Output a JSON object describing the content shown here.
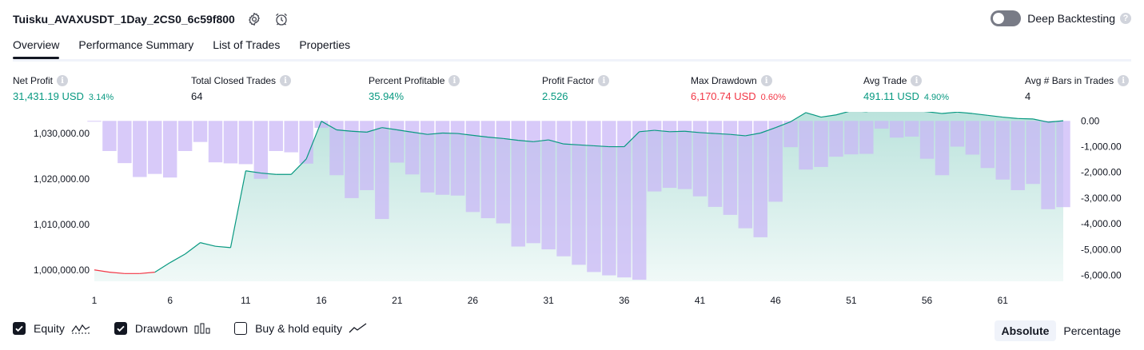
{
  "header": {
    "title": "Tuisku_AVAXUSDT_1Day_2CS0_6c59f800",
    "deep_backtesting_label": "Deep Backtesting"
  },
  "tabs": [
    {
      "label": "Overview",
      "active": true
    },
    {
      "label": "Performance Summary"
    },
    {
      "label": "List of Trades"
    },
    {
      "label": "Properties"
    }
  ],
  "metrics": [
    {
      "label": "Net Profit",
      "value": "31,431.19 USD",
      "pct": "3.14%",
      "color": "#089981"
    },
    {
      "label": "Total Closed Trades",
      "value": "64",
      "pct": "",
      "color": "#131722"
    },
    {
      "label": "Percent Profitable",
      "value": "35.94%",
      "pct": "",
      "color": "#089981"
    },
    {
      "label": "Profit Factor",
      "value": "2.526",
      "pct": "",
      "color": "#089981"
    },
    {
      "label": "Max Drawdown",
      "value": "6,170.74 USD",
      "pct": "0.60%",
      "color": "#f23645"
    },
    {
      "label": "Avg Trade",
      "value": "491.11 USD",
      "pct": "4.90%",
      "color": "#089981"
    },
    {
      "label": "Avg # Bars in Trades",
      "value": "4",
      "pct": "",
      "color": "#131722"
    }
  ],
  "legend": {
    "equity": {
      "label": "Equity",
      "checked": true
    },
    "drawdown": {
      "label": "Drawdown",
      "checked": true
    },
    "buy_hold": {
      "label": "Buy & hold equity",
      "checked": false
    }
  },
  "mode": {
    "absolute": "Absolute",
    "percentage": "Percentage",
    "selected": "Absolute"
  },
  "chart_data": {
    "type": "area",
    "x_ticks": [
      "1",
      "6",
      "11",
      "16",
      "21",
      "26",
      "31",
      "36",
      "41",
      "46",
      "51",
      "56",
      "61"
    ],
    "left_axis": {
      "ticks": [
        "1,000,000.00",
        "1,010,000.00",
        "1,020,000.00",
        "1,030,000.00"
      ],
      "tick_values": [
        1000000,
        1010000,
        1020000,
        1030000
      ],
      "range": [
        997500,
        1033000
      ]
    },
    "right_axis": {
      "ticks": [
        "0.00",
        "-1,000.00",
        "-2,000.00",
        "-3,000.00",
        "-4,000.00",
        "-5,000.00",
        "-6,000.00"
      ],
      "tick_values": [
        0,
        -1000,
        -2000,
        -3000,
        -4000,
        -5000,
        -6000
      ],
      "range": [
        -6230,
        40
      ]
    },
    "series": [
      {
        "name": "Equity",
        "type": "area",
        "color_up": "#089981",
        "color_down": "#f23645",
        "x": [
          1,
          2,
          3,
          4,
          5,
          6,
          7,
          8,
          9,
          10,
          11,
          12,
          13,
          14,
          15,
          16,
          17,
          18,
          19,
          20,
          21,
          22,
          23,
          24,
          25,
          26,
          27,
          28,
          29,
          30,
          31,
          32,
          33,
          34,
          35,
          36,
          37,
          38,
          39,
          40,
          41,
          42,
          43,
          44,
          45,
          46,
          47,
          48,
          49,
          50,
          51,
          52,
          53,
          54,
          55,
          56,
          57,
          58,
          59,
          60,
          61,
          62,
          63,
          64,
          65
        ],
        "values": [
          1000000,
          999500,
          999200,
          999200,
          999500,
          1001600,
          1003500,
          1006000,
          1005200,
          1004900,
          1021800,
          1021300,
          1021000,
          1021000,
          1024400,
          1032700,
          1030800,
          1030500,
          1030300,
          1031300,
          1030800,
          1030300,
          1029800,
          1030100,
          1030000,
          1029600,
          1029200,
          1028900,
          1028500,
          1028200,
          1028600,
          1027700,
          1027500,
          1027300,
          1027100,
          1027100,
          1030400,
          1030700,
          1030400,
          1030500,
          1030200,
          1030000,
          1029800,
          1029500,
          1030100,
          1031300,
          1032600,
          1034600,
          1033600,
          1034100,
          1035000,
          1034800,
          1035400,
          1035200,
          1035100,
          1034800,
          1034400,
          1034700,
          1034400,
          1034000,
          1033600,
          1033300,
          1033200,
          1032500,
          1032800
        ]
      },
      {
        "name": "Drawdown",
        "type": "bar",
        "color": "#d1c4f9",
        "overlap_color": "#a8b2e0",
        "x": [
          1,
          2,
          3,
          4,
          5,
          6,
          7,
          8,
          9,
          10,
          11,
          12,
          13,
          14,
          15,
          16,
          17,
          18,
          19,
          20,
          21,
          22,
          23,
          24,
          25,
          26,
          27,
          28,
          29,
          30,
          31,
          32,
          33,
          34,
          35,
          36,
          37,
          38,
          39,
          40,
          41,
          42,
          43,
          44,
          45,
          46,
          47,
          48,
          49,
          50,
          51,
          52,
          53,
          54,
          55,
          56,
          57,
          58,
          59,
          60,
          61,
          62,
          63,
          64,
          65
        ],
        "values": [
          -30,
          -1170,
          -1640,
          -2180,
          -2060,
          -2200,
          -1170,
          -820,
          -1610,
          -1650,
          -1680,
          -2250,
          -1170,
          -1220,
          -1660,
          -270,
          -2110,
          -3000,
          -2690,
          -3810,
          -1620,
          -2080,
          -2780,
          -2870,
          -2900,
          -3540,
          -3780,
          -3980,
          -4880,
          -4750,
          -4990,
          -5260,
          -5590,
          -5870,
          -6000,
          -6080,
          -6170,
          -2740,
          -2600,
          -2650,
          -2930,
          -3340,
          -3650,
          -4170,
          -4520,
          -3140,
          -1020,
          -1890,
          -1790,
          -1390,
          -1300,
          -1280,
          -300,
          -650,
          -610,
          -1470,
          -2110,
          -1000,
          -1310,
          -1830,
          -2280,
          -2690,
          -2450,
          -3430,
          -3350
        ]
      }
    ]
  }
}
